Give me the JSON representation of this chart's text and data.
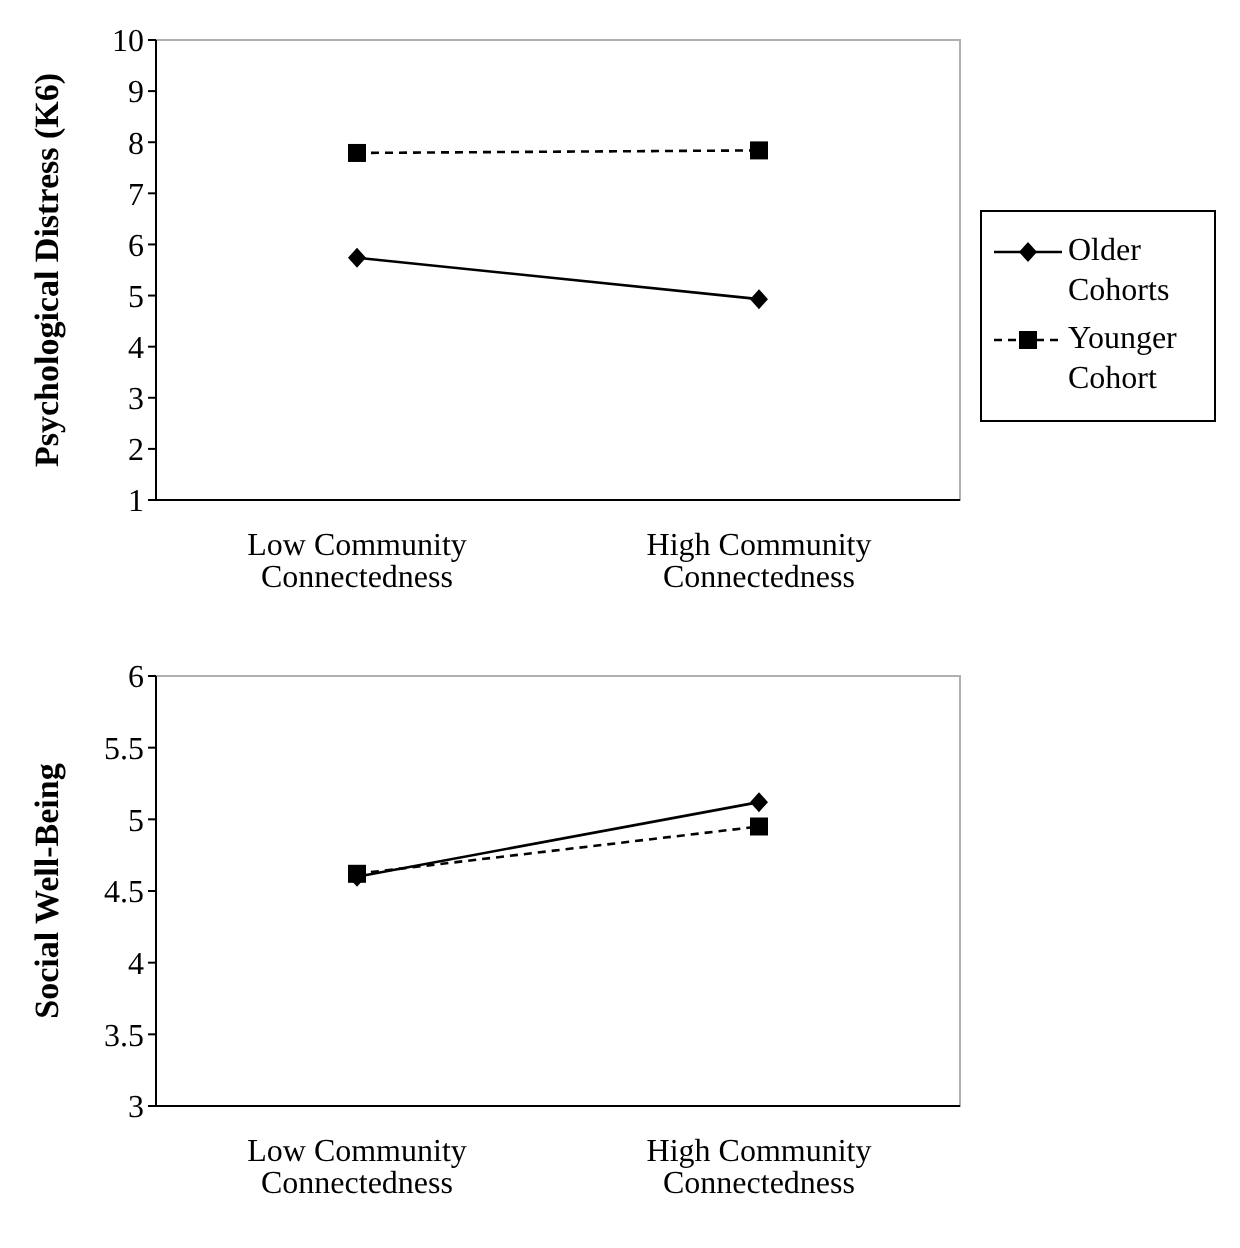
{
  "chart_data": [
    {
      "type": "line",
      "ylabel": "Psychological Distress (K6)",
      "categories": [
        "Low Community Connectedness",
        "High Community Connectedness"
      ],
      "ylim": [
        1,
        10
      ],
      "yticks": [
        1,
        2,
        3,
        4,
        5,
        6,
        7,
        8,
        9,
        10
      ],
      "legend": "right",
      "grid": false,
      "series": [
        {
          "name": "Older Cohorts",
          "color": "#000000",
          "values": [
            5.74,
            4.93
          ],
          "marker": "diamond",
          "line_style": "solid"
        },
        {
          "name": "Younger Cohort",
          "color": "#000000",
          "values": [
            7.79,
            7.84
          ],
          "marker": "square",
          "line_style": "dashed"
        }
      ]
    },
    {
      "type": "line",
      "ylabel": "Social Well-Being",
      "categories": [
        "Low Community Connectedness",
        "High Community Connectedness"
      ],
      "ylim": [
        3,
        6
      ],
      "yticks": [
        3,
        3.5,
        4,
        4.5,
        5,
        5.5,
        6
      ],
      "legend": false,
      "grid": false,
      "series": [
        {
          "color": "#000000",
          "values": [
            4.6,
            5.12
          ],
          "marker": "diamond",
          "line_style": "solid"
        },
        {
          "color": "#000000",
          "values": [
            4.62,
            4.95
          ],
          "marker": "square",
          "line_style": "dashed"
        }
      ]
    }
  ]
}
